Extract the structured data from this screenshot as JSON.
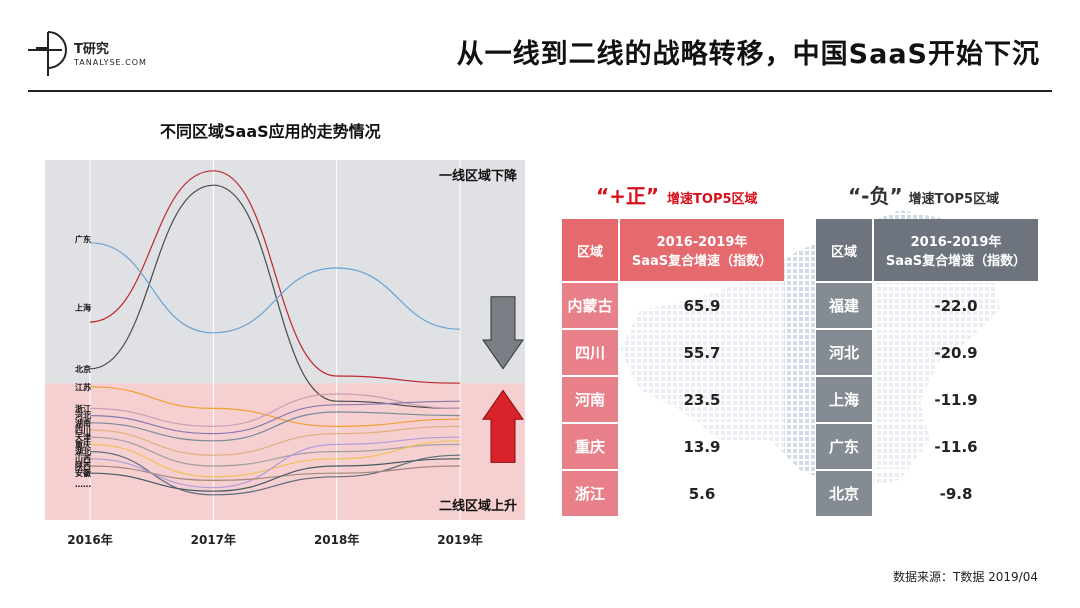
{
  "brand": {
    "name_cn": "T研究",
    "name_en": "TANALYSE.COM"
  },
  "page_title": "从一线到二线的战略转移，中国SaaS开始下沉",
  "source": "数据来源：T数据 2019/04",
  "colors": {
    "accent_red": "#d9101b",
    "pos_header": "#e46a6e",
    "neg_header": "#6d747e"
  },
  "chart_data": {
    "type": "line",
    "title": "不同区域SaaS应用的走势情况",
    "categories": [
      "2016年",
      "2017年",
      "2018年",
      "2019年"
    ],
    "xlabel": "",
    "ylabel": "",
    "ylim": [
      0,
      100
    ],
    "bands": [
      {
        "label": "一线区域下降",
        "range": [
          38,
          100
        ]
      },
      {
        "label": "二线区域上升",
        "range": [
          0,
          38
        ]
      }
    ],
    "band_arrows": {
      "down": "down-arrow-icon",
      "up": "up-arrow-icon"
    },
    "region_labels": [
      {
        "text": "广东",
        "value": 78
      },
      {
        "text": "上海",
        "value": 59
      },
      {
        "text": "北京",
        "value": 42
      },
      {
        "text": "江苏",
        "value": 37
      },
      {
        "text": "浙江",
        "value": 31
      },
      {
        "text": "河北",
        "value": 29
      },
      {
        "text": "湖南",
        "value": 27
      },
      {
        "text": "四川",
        "value": 25
      },
      {
        "text": "天津",
        "value": 23
      },
      {
        "text": "重庆",
        "value": 21
      },
      {
        "text": "湖北",
        "value": 19
      },
      {
        "text": "山西",
        "value": 17
      },
      {
        "text": "陕西",
        "value": 15
      },
      {
        "text": "安徽",
        "value": 13
      },
      {
        "text": "……",
        "value": 10
      }
    ],
    "series": [
      {
        "name": "北京",
        "color": "#4a4a4a",
        "values": [
          42,
          93,
          33,
          31
        ]
      },
      {
        "name": "上海",
        "color": "#c0282d",
        "values": [
          55,
          97,
          40,
          38
        ]
      },
      {
        "name": "广东",
        "color": "#6aa3d5",
        "values": [
          77,
          52,
          70,
          53
        ]
      },
      {
        "name": "江苏",
        "color": "#f0a030",
        "values": [
          37,
          31,
          26,
          28
        ]
      },
      {
        "name": "浙江",
        "color": "#c8a0b8",
        "values": [
          31,
          26,
          35,
          31
        ]
      },
      {
        "name": "河北",
        "color": "#8a7ab0",
        "values": [
          29,
          24,
          32,
          33
        ]
      },
      {
        "name": "湖南",
        "color": "#7a8a9a",
        "values": [
          27,
          22,
          30,
          29
        ]
      },
      {
        "name": "四川",
        "color": "#e0b080",
        "values": [
          25,
          18,
          24,
          26
        ]
      },
      {
        "name": "天津",
        "color": "#a0a0a0",
        "values": [
          23,
          15,
          19,
          21
        ]
      },
      {
        "name": "重庆",
        "color": "#f2c05a",
        "values": [
          21,
          12,
          17,
          22
        ]
      },
      {
        "name": "湖北",
        "color": "#5d6d7e",
        "values": [
          19,
          7,
          12,
          18
        ]
      },
      {
        "name": "山西",
        "color": "#b39ddb",
        "values": [
          17,
          9,
          21,
          23
        ]
      },
      {
        "name": "陕西",
        "color": "#a1887f",
        "values": [
          15,
          11,
          13,
          15
        ]
      },
      {
        "name": "安徽",
        "color": "#455a64",
        "values": [
          13,
          8,
          15,
          17
        ]
      }
    ]
  },
  "positive": {
    "heading_big": "“+正”",
    "heading_small": "增速TOP5区域",
    "header": {
      "col1": "区域",
      "col2_line1": "2016-2019年",
      "col2_line2": "SaaS复合增速（指数）"
    },
    "rows": [
      {
        "region": "内蒙古",
        "value": "65.9"
      },
      {
        "region": "四川",
        "value": "55.7"
      },
      {
        "region": "河南",
        "value": "23.5"
      },
      {
        "region": "重庆",
        "value": "13.9"
      },
      {
        "region": "浙江",
        "value": "5.6"
      }
    ]
  },
  "negative": {
    "heading_big": "“-负”",
    "heading_small": "增速TOP5区域",
    "header": {
      "col1": "区域",
      "col2_line1": "2016-2019年",
      "col2_line2": "SaaS复合增速（指数）"
    },
    "rows": [
      {
        "region": "福建",
        "value": "-22.0"
      },
      {
        "region": "河北",
        "value": "-20.9"
      },
      {
        "region": "上海",
        "value": "-11.9"
      },
      {
        "region": "广东",
        "value": "-11.6"
      },
      {
        "region": "北京",
        "value": "-9.8"
      }
    ]
  }
}
